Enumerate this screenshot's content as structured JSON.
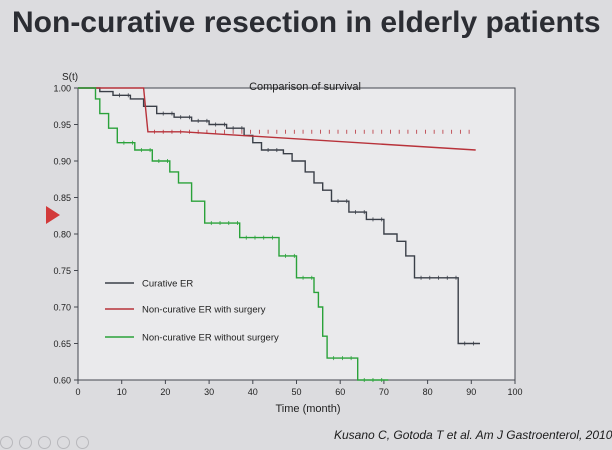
{
  "slide": {
    "title": "Non-curative resection in elderly patients",
    "citation": "Kusano C, Gotoda T et al. Am J Gastroenterol, 2010"
  },
  "chart_data": {
    "type": "line",
    "title": "Comparison of survival",
    "xlabel": "Time (month)",
    "ylabel": "S(t)",
    "xlim": [
      0,
      100
    ],
    "ylim": [
      0.6,
      1.0
    ],
    "x_ticks": [
      "0",
      "10",
      "20",
      "30",
      "40",
      "50",
      "60",
      "70",
      "80",
      "90",
      "100"
    ],
    "y_ticks": [
      "1.00",
      "0.95",
      "0.90",
      "0.85",
      "0.80",
      "0.75",
      "0.70",
      "0.65",
      "0.60"
    ],
    "legend_position": "lower-left",
    "series": [
      {
        "name": "Curative ER",
        "color": "#3a3f48",
        "step": true,
        "points": [
          [
            0,
            1.0
          ],
          [
            3,
            1.0
          ],
          [
            5,
            0.995
          ],
          [
            8,
            0.99
          ],
          [
            12,
            0.985
          ],
          [
            15,
            0.975
          ],
          [
            18,
            0.965
          ],
          [
            22,
            0.96
          ],
          [
            26,
            0.955
          ],
          [
            30,
            0.95
          ],
          [
            34,
            0.945
          ],
          [
            38,
            0.935
          ],
          [
            40,
            0.925
          ],
          [
            42,
            0.915
          ],
          [
            47,
            0.91
          ],
          [
            49,
            0.9
          ],
          [
            52,
            0.885
          ],
          [
            54,
            0.87
          ],
          [
            56,
            0.86
          ],
          [
            58,
            0.845
          ],
          [
            62,
            0.83
          ],
          [
            66,
            0.82
          ],
          [
            70,
            0.8
          ],
          [
            73,
            0.79
          ],
          [
            75,
            0.77
          ],
          [
            77,
            0.74
          ],
          [
            83,
            0.74
          ],
          [
            87,
            0.65
          ],
          [
            92,
            0.65
          ]
        ]
      },
      {
        "name": "Non-curative ER with surgery",
        "color": "#b8323a",
        "step": false,
        "points": [
          [
            0,
            1.0
          ],
          [
            15,
            1.0
          ],
          [
            16,
            0.94
          ],
          [
            24,
            0.94
          ],
          [
            91,
            0.915
          ]
        ]
      },
      {
        "name": "Non-curative ER without surgery",
        "color": "#2aa23a",
        "step": true,
        "points": [
          [
            0,
            1.0
          ],
          [
            3,
            1.0
          ],
          [
            4,
            0.985
          ],
          [
            5,
            0.965
          ],
          [
            7,
            0.945
          ],
          [
            9,
            0.925
          ],
          [
            13,
            0.915
          ],
          [
            17,
            0.9
          ],
          [
            21,
            0.885
          ],
          [
            23,
            0.87
          ],
          [
            26,
            0.845
          ],
          [
            29,
            0.815
          ],
          [
            37,
            0.795
          ],
          [
            46,
            0.77
          ],
          [
            50,
            0.74
          ],
          [
            54,
            0.72
          ],
          [
            55,
            0.7
          ],
          [
            56,
            0.66
          ],
          [
            57,
            0.63
          ],
          [
            64,
            0.6
          ],
          [
            71,
            0.6
          ]
        ]
      }
    ]
  }
}
